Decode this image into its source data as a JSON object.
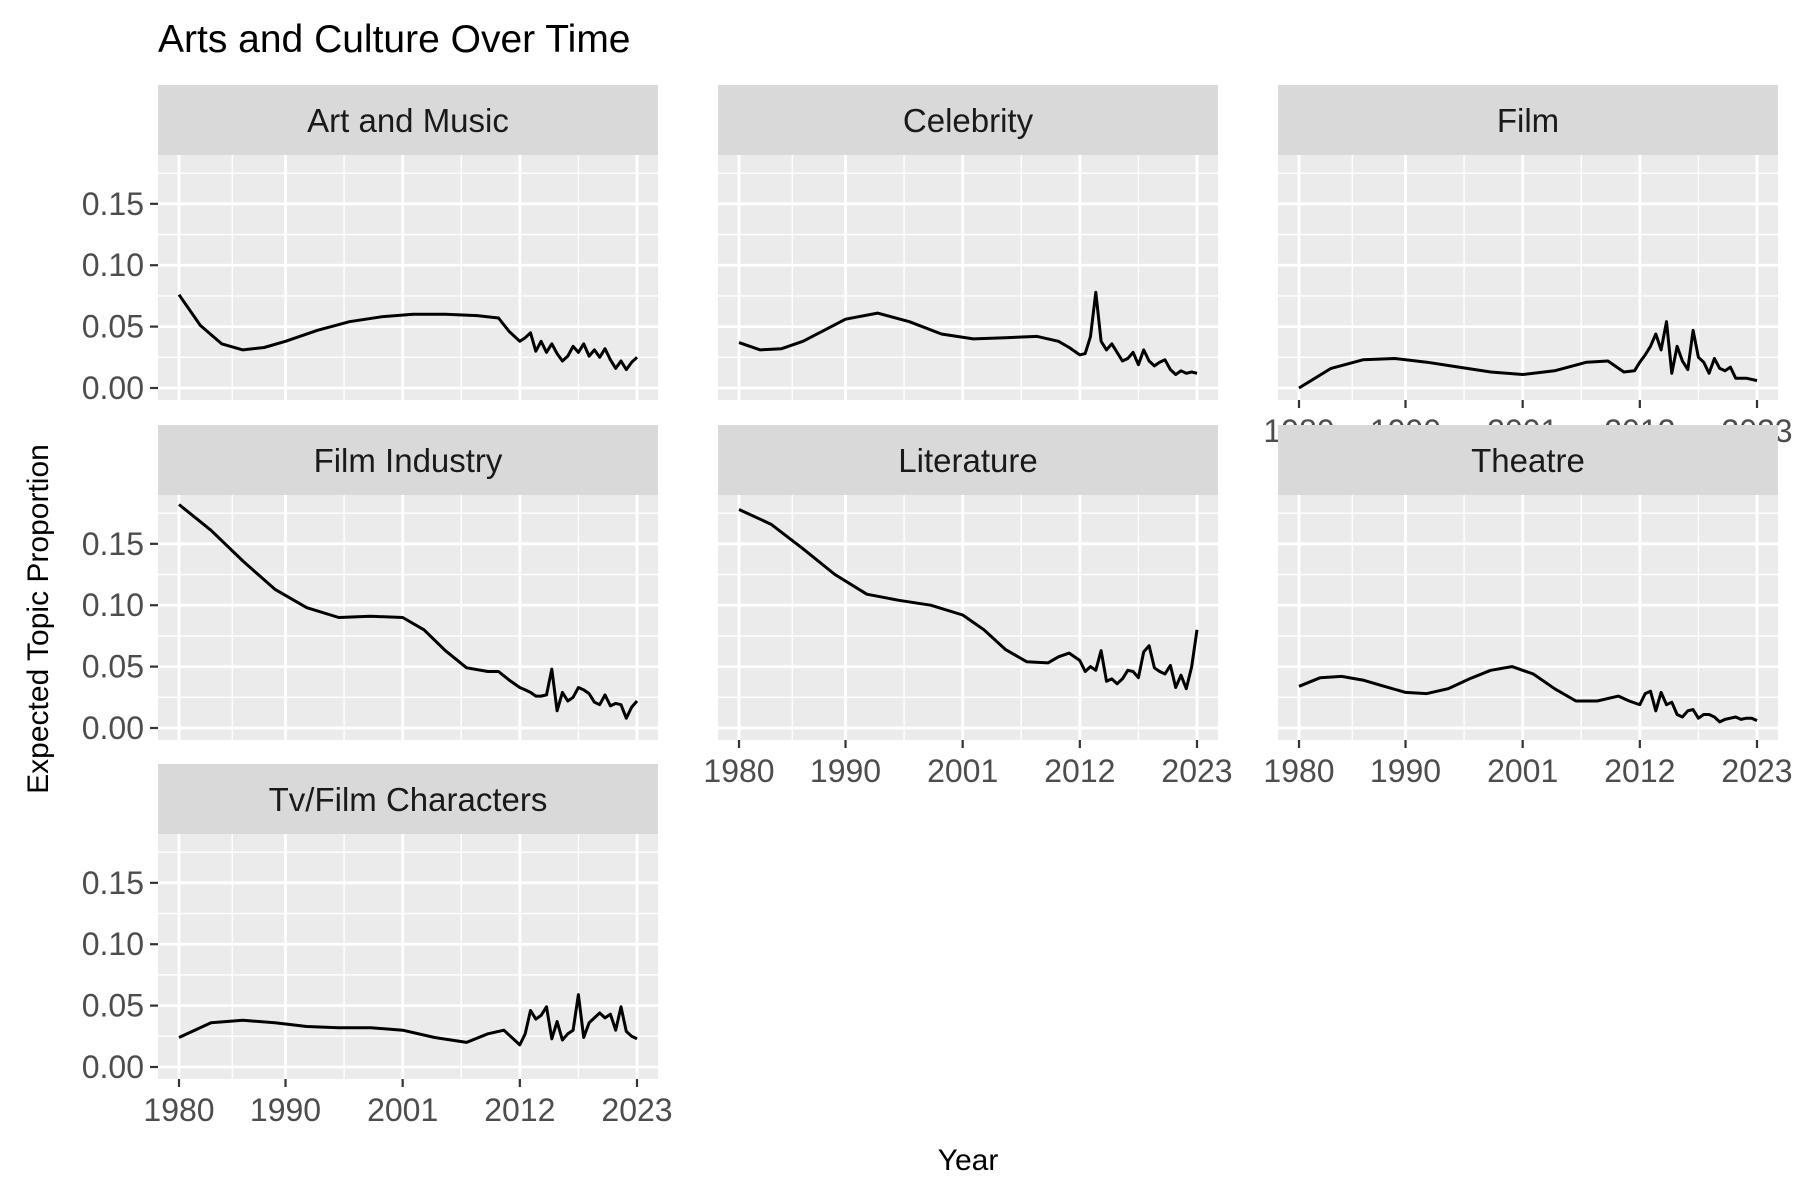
{
  "chart_data": {
    "type": "line",
    "title": "Arts and Culture Over Time",
    "xlabel": "Year",
    "ylabel": "Expected Topic Proportion",
    "x_ticks": [
      1980,
      1990,
      2001,
      2012,
      2023
    ],
    "y_ticks": [
      "0.00",
      "0.05",
      "0.10",
      "0.15"
    ],
    "xlim": [
      1980,
      2023
    ],
    "ylim": [
      0,
      0.18
    ],
    "grid": true,
    "series_color": "#000000",
    "panel_background": "#ebebeb",
    "strip_background": "#d9d9d9",
    "panels": [
      {
        "name": "Art and Music",
        "x": [
          1980,
          1982,
          1984,
          1986,
          1988,
          1990,
          1993,
          1996,
          1999,
          2002,
          2005,
          2008,
          2010,
          2011,
          2012,
          2012.5,
          2013,
          2013.5,
          2014,
          2014.5,
          2015,
          2015.5,
          2016,
          2016.5,
          2017,
          2017.5,
          2018,
          2018.5,
          2019,
          2019.5,
          2020,
          2020.5,
          2021,
          2021.5,
          2022,
          2022.5,
          2023
        ],
        "y": [
          0.076,
          0.051,
          0.036,
          0.031,
          0.033,
          0.038,
          0.047,
          0.054,
          0.058,
          0.06,
          0.06,
          0.059,
          0.057,
          0.046,
          0.038,
          0.041,
          0.045,
          0.03,
          0.038,
          0.029,
          0.036,
          0.028,
          0.022,
          0.026,
          0.034,
          0.029,
          0.036,
          0.026,
          0.031,
          0.025,
          0.032,
          0.023,
          0.016,
          0.022,
          0.015,
          0.021,
          0.025
        ]
      },
      {
        "name": "Celebrity",
        "x": [
          1980,
          1982,
          1984,
          1986,
          1988,
          1990,
          1993,
          1996,
          1999,
          2002,
          2005,
          2008,
          2010,
          2011,
          2012,
          2012.5,
          2013,
          2013.5,
          2014,
          2014.5,
          2015,
          2015.5,
          2016,
          2016.5,
          2017,
          2017.5,
          2018,
          2018.5,
          2019,
          2019.5,
          2020,
          2020.5,
          2021,
          2021.5,
          2022,
          2022.5,
          2023
        ],
        "y": [
          0.037,
          0.031,
          0.032,
          0.038,
          0.047,
          0.056,
          0.061,
          0.054,
          0.044,
          0.04,
          0.041,
          0.042,
          0.038,
          0.033,
          0.027,
          0.028,
          0.042,
          0.078,
          0.038,
          0.031,
          0.036,
          0.029,
          0.022,
          0.024,
          0.029,
          0.019,
          0.031,
          0.022,
          0.018,
          0.021,
          0.023,
          0.015,
          0.011,
          0.014,
          0.012,
          0.013,
          0.012
        ]
      },
      {
        "name": "Film",
        "x": [
          1980,
          1983,
          1986,
          1989,
          1992,
          1995,
          1998,
          2001,
          2004,
          2007,
          2009,
          2010.5,
          2011.5,
          2012,
          2012.5,
          2013,
          2013.5,
          2014,
          2014.5,
          2015,
          2015.5,
          2016,
          2016.5,
          2017,
          2017.5,
          2018,
          2018.5,
          2019,
          2019.5,
          2020,
          2020.5,
          2021,
          2022,
          2023
        ],
        "y": [
          0.0,
          0.016,
          0.023,
          0.024,
          0.021,
          0.017,
          0.013,
          0.011,
          0.014,
          0.021,
          0.022,
          0.013,
          0.014,
          0.021,
          0.027,
          0.034,
          0.044,
          0.031,
          0.054,
          0.012,
          0.034,
          0.022,
          0.015,
          0.047,
          0.025,
          0.021,
          0.012,
          0.024,
          0.016,
          0.014,
          0.017,
          0.008,
          0.008,
          0.006
        ]
      },
      {
        "name": "Film Industry",
        "x": [
          1980,
          1983,
          1986,
          1989,
          1992,
          1995,
          1998,
          2001,
          2003,
          2005,
          2007,
          2009,
          2010,
          2011,
          2012,
          2012.5,
          2013,
          2013.5,
          2014,
          2014.5,
          2015,
          2015.5,
          2016,
          2016.5,
          2017,
          2017.5,
          2018,
          2018.5,
          2019,
          2019.5,
          2020,
          2020.5,
          2021,
          2021.5,
          2022,
          2022.5,
          2023
        ],
        "y": [
          0.182,
          0.161,
          0.136,
          0.113,
          0.098,
          0.09,
          0.091,
          0.09,
          0.08,
          0.063,
          0.049,
          0.046,
          0.046,
          0.039,
          0.033,
          0.031,
          0.029,
          0.026,
          0.026,
          0.027,
          0.048,
          0.014,
          0.029,
          0.022,
          0.025,
          0.033,
          0.031,
          0.028,
          0.021,
          0.019,
          0.027,
          0.018,
          0.02,
          0.019,
          0.008,
          0.017,
          0.022
        ]
      },
      {
        "name": "Literature",
        "x": [
          1980,
          1983,
          1986,
          1989,
          1992,
          1995,
          1998,
          2001,
          2003,
          2005,
          2007,
          2009,
          2010,
          2011,
          2012,
          2012.5,
          2013,
          2013.5,
          2014,
          2014.5,
          2015,
          2015.5,
          2016,
          2016.5,
          2017,
          2017.5,
          2018,
          2018.5,
          2019,
          2019.5,
          2020,
          2020.5,
          2021,
          2021.5,
          2022,
          2022.5,
          2023
        ],
        "y": [
          0.178,
          0.166,
          0.146,
          0.125,
          0.109,
          0.104,
          0.1,
          0.092,
          0.08,
          0.064,
          0.054,
          0.053,
          0.058,
          0.061,
          0.055,
          0.046,
          0.05,
          0.047,
          0.063,
          0.038,
          0.04,
          0.036,
          0.04,
          0.047,
          0.046,
          0.041,
          0.062,
          0.067,
          0.049,
          0.046,
          0.044,
          0.051,
          0.033,
          0.043,
          0.032,
          0.05,
          0.08
        ]
      },
      {
        "name": "Theatre",
        "x": [
          1980,
          1982,
          1984,
          1986,
          1988,
          1990,
          1992,
          1994,
          1996,
          1998,
          2000,
          2002,
          2004,
          2006,
          2008,
          2010,
          2011,
          2012,
          2012.5,
          2013,
          2013.5,
          2014,
          2014.5,
          2015,
          2015.5,
          2016,
          2016.5,
          2017,
          2017.5,
          2018,
          2018.5,
          2019,
          2019.5,
          2020,
          2020.5,
          2021,
          2021.5,
          2022,
          2022.5,
          2023
        ],
        "y": [
          0.034,
          0.041,
          0.042,
          0.039,
          0.034,
          0.029,
          0.028,
          0.032,
          0.04,
          0.047,
          0.05,
          0.044,
          0.032,
          0.022,
          0.022,
          0.026,
          0.022,
          0.019,
          0.028,
          0.03,
          0.014,
          0.029,
          0.019,
          0.021,
          0.011,
          0.009,
          0.014,
          0.015,
          0.008,
          0.011,
          0.011,
          0.009,
          0.005,
          0.007,
          0.008,
          0.009,
          0.007,
          0.008,
          0.008,
          0.006
        ]
      },
      {
        "name": "Tv/Film Characters",
        "x": [
          1980,
          1983,
          1986,
          1989,
          1992,
          1995,
          1998,
          2001,
          2004,
          2007,
          2009,
          2010.5,
          2012,
          2012.5,
          2013,
          2013.5,
          2014,
          2014.5,
          2015,
          2015.5,
          2016,
          2016.5,
          2017,
          2017.5,
          2018,
          2018.5,
          2019,
          2019.5,
          2020,
          2020.5,
          2021,
          2021.5,
          2022,
          2022.5,
          2023
        ],
        "y": [
          0.024,
          0.036,
          0.038,
          0.036,
          0.033,
          0.032,
          0.032,
          0.03,
          0.024,
          0.02,
          0.027,
          0.03,
          0.018,
          0.027,
          0.046,
          0.039,
          0.042,
          0.049,
          0.023,
          0.037,
          0.022,
          0.027,
          0.03,
          0.059,
          0.024,
          0.036,
          0.04,
          0.044,
          0.04,
          0.043,
          0.03,
          0.049,
          0.029,
          0.025,
          0.023
        ]
      }
    ]
  }
}
